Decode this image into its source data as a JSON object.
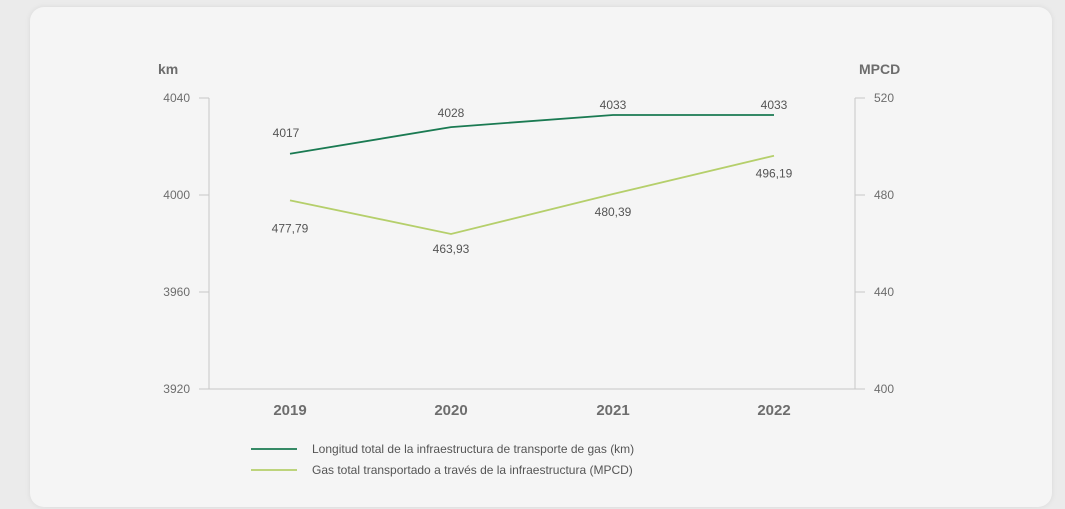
{
  "chart_data": {
    "type": "line",
    "categories": [
      "2019",
      "2020",
      "2021",
      "2022"
    ],
    "left_axis": {
      "title": "km",
      "range": [
        3920,
        4040
      ],
      "ticks": [
        "4040",
        "4000",
        "3960",
        "3920"
      ]
    },
    "right_axis": {
      "title": "MPCD",
      "range": [
        400,
        520
      ],
      "ticks": [
        "520",
        "480",
        "440",
        "400"
      ]
    },
    "series": [
      {
        "name": "Longitud total de la infraestructura de transporte de gas (km)",
        "axis": "left",
        "color": "#1a7a52",
        "values": [
          4017,
          4028,
          4033,
          4033
        ],
        "labels": [
          "4017",
          "4028",
          "4033",
          "4033"
        ]
      },
      {
        "name": "Gas total transportado a través de la infraestructura (MPCD)",
        "axis": "right",
        "color": "#b5cf6b",
        "values": [
          477.79,
          463.93,
          480.39,
          496.19
        ],
        "labels": [
          "477,79",
          "463,93",
          "480,39",
          "496,19"
        ]
      }
    ],
    "grid": false,
    "legend_position": "bottom-left"
  }
}
